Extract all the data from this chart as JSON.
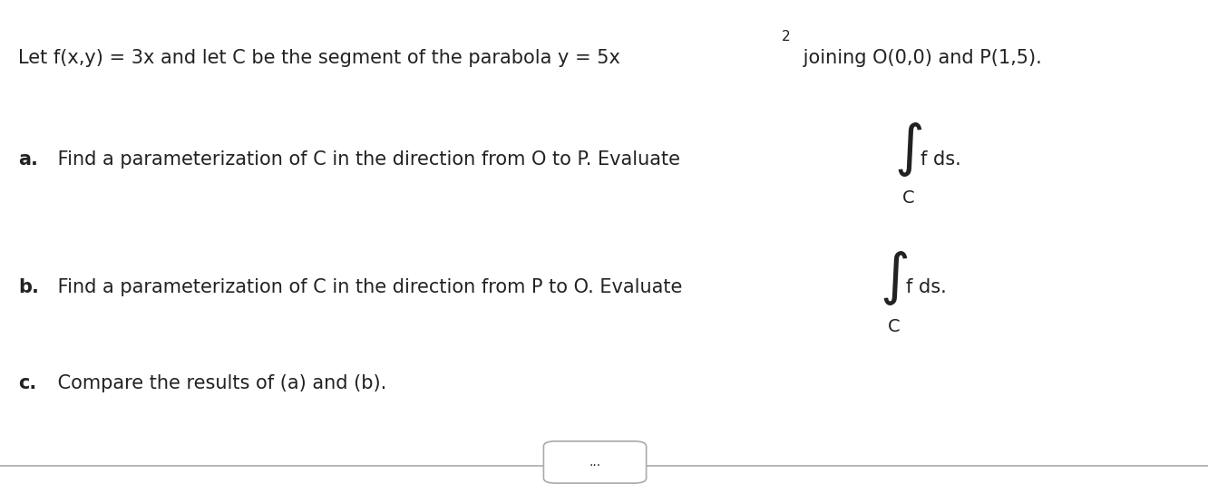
{
  "background_color": "#ffffff",
  "title_text": "Let f(x,y) = 3x and let C be the segment of the parabola y = 5x",
  "title_superscript": "2",
  "title_suffix": " joining O(0,0) and P(1,5).",
  "line_a_bold": "a.",
  "line_a_text": " Find a parameterization of C in the direction from O to P. Evaluate",
  "line_b_bold": "b.",
  "line_b_text": " Find a parameterization of C in the direction from P to O. Evaluate",
  "line_c_bold": "c.",
  "line_c_text": " Compare the results of (a) and (b).",
  "integral_text": "f ds.",
  "subscript_text": "C",
  "bottom_bar_color": "#aaaaaa",
  "dots_text": "...",
  "dots_border_color": "#aaaaaa",
  "text_color": "#222222",
  "font_size_main": 15,
  "font_size_integral": 22,
  "font_size_subscript": 13
}
